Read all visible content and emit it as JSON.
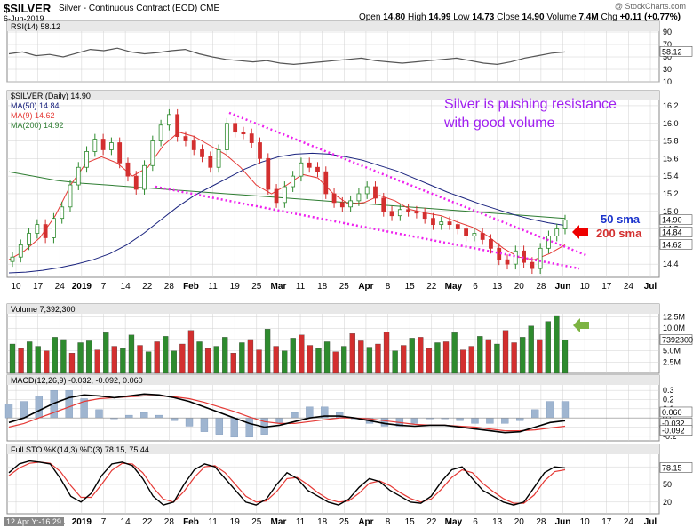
{
  "header": {
    "ticker": "$SILVER",
    "description": "Silver - Continuous Contract (EOD)",
    "exchange": "CME",
    "date": "6-Jun-2019",
    "open_label": "Open",
    "open": "14.80",
    "high_label": "High",
    "high": "14.99",
    "low_label": "Low",
    "low": "14.73",
    "close_label": "Close",
    "close": "14.90",
    "volume_label": "Volume",
    "volume": "7.4M",
    "chg_label": "Chg",
    "chg": "+0.11 (+0.77%)",
    "watermark": "@ StockCharts.com"
  },
  "footer_note": "12 Apr Y:-16.29",
  "colors": {
    "up": "#2e8b2e",
    "down": "#d32f2f",
    "ma50": "#1a237e",
    "ma9": "#e53935",
    "ma200": "#2e7d32",
    "annotation": "#a020f0",
    "trend": "#ee22ee",
    "grid": "#d0d0d0",
    "panel_header": "#e8e8e8"
  },
  "chart_data": [
    {
      "type": "line",
      "panel": "RSI",
      "legend": "RSI(14) 58.12",
      "ylim": [
        10,
        90
      ],
      "yticks": [
        "90",
        "70",
        "50",
        "30",
        "10"
      ],
      "y_labels_right": [
        "58.12"
      ],
      "series": [
        {
          "name": "RSI(14)",
          "values": [
            55,
            58,
            52,
            54,
            50,
            56,
            62,
            60,
            64,
            58,
            55,
            57,
            60,
            62,
            55,
            50,
            46,
            44,
            42,
            44,
            40,
            38,
            40,
            42,
            44,
            46,
            48,
            44,
            42,
            40,
            42,
            44,
            46,
            48,
            44,
            40,
            38,
            42,
            48,
            52,
            56,
            58
          ]
        }
      ]
    },
    {
      "type": "candlestick",
      "panel": "Price",
      "legend": [
        "$SILVER (Daily) 14.90",
        "MA(50) 14.84",
        "MA(9) 14.62",
        "MA(200) 14.92"
      ],
      "ylim": [
        14.25,
        16.25
      ],
      "yticks": [
        "16.2",
        "16.0",
        "15.8",
        "15.6",
        "15.4",
        "15.2",
        "15.0",
        "14.8",
        "14.6",
        "14.4"
      ],
      "y_labels_right": [
        "14.90",
        "14.84",
        "14.62"
      ],
      "x_tick_labels": [
        "10",
        "17",
        "24",
        "2019",
        "7",
        "14",
        "22",
        "28",
        "Feb",
        "11",
        "19",
        "25",
        "Mar",
        "11",
        "18",
        "25",
        "Apr",
        "8",
        "15",
        "22",
        "May",
        "6",
        "13",
        "20",
        "28",
        "Jun",
        "10",
        "17",
        "24",
        "Jul"
      ],
      "closes": [
        14.48,
        14.62,
        14.75,
        14.85,
        14.7,
        14.92,
        15.05,
        15.3,
        15.5,
        15.68,
        15.82,
        15.7,
        15.78,
        15.55,
        15.4,
        15.25,
        15.52,
        15.8,
        15.98,
        16.1,
        15.85,
        15.8,
        15.7,
        15.62,
        15.5,
        15.7,
        16.0,
        15.9,
        15.88,
        15.78,
        15.6,
        15.25,
        15.1,
        15.28,
        15.4,
        15.55,
        15.5,
        15.45,
        15.2,
        15.1,
        15.05,
        15.12,
        15.2,
        15.28,
        15.15,
        15.0,
        14.95,
        15.02,
        15.0,
        14.98,
        14.92,
        14.85,
        14.88,
        14.85,
        14.8,
        14.72,
        14.75,
        14.68,
        14.58,
        14.45,
        14.4,
        14.55,
        14.42,
        14.35,
        14.58,
        14.72,
        14.8,
        14.9
      ],
      "series_lines": [
        {
          "name": "MA(50)",
          "values": [
            14.3,
            14.31,
            14.33,
            14.36,
            14.4,
            14.45,
            14.52,
            14.62,
            14.75,
            14.9,
            15.05,
            15.18,
            15.28,
            15.38,
            15.48,
            15.56,
            15.62,
            15.65,
            15.66,
            15.65,
            15.62,
            15.58,
            15.52,
            15.46,
            15.38,
            15.3,
            15.22,
            15.15,
            15.08,
            15.02,
            14.96,
            14.91,
            14.87,
            14.84
          ]
        },
        {
          "name": "MA(9)",
          "values": [
            14.45,
            14.55,
            14.7,
            14.95,
            15.3,
            15.55,
            15.62,
            15.55,
            15.4,
            15.5,
            15.75,
            15.9,
            15.85,
            15.75,
            15.65,
            15.5,
            15.3,
            15.2,
            15.3,
            15.42,
            15.38,
            15.2,
            15.08,
            15.1,
            15.18,
            15.12,
            15.02,
            14.98,
            14.95,
            14.88,
            14.82,
            14.72,
            14.58,
            14.48,
            14.45,
            14.52,
            14.62
          ]
        },
        {
          "name": "MA(200)",
          "values": [
            15.45,
            15.4,
            15.35,
            15.32,
            15.3,
            15.28,
            15.26,
            15.24,
            15.22,
            15.2,
            15.18,
            15.16,
            15.14,
            15.12,
            15.1,
            15.08,
            15.06,
            15.04,
            15.02,
            15.0,
            14.98,
            14.96,
            14.94,
            14.92
          ]
        }
      ],
      "annotations": [
        "Silver is pushing resistance",
        "with good volume",
        "50 sma",
        "200 sma"
      ]
    },
    {
      "type": "bar",
      "panel": "Volume",
      "legend": "Volume 7,392,300",
      "yticks": [
        "12.5M",
        "10.0M",
        "7.5M",
        "5.0M",
        "2.5M"
      ],
      "y_labels_right": [
        "7392300"
      ],
      "ylim": [
        0,
        13000000
      ],
      "values": [
        6.5,
        5.5,
        7.0,
        6.0,
        5.0,
        8.0,
        7.5,
        4.5,
        6.8,
        7.2,
        5.2,
        9.0,
        6.0,
        5.5,
        8.5,
        6.2,
        4.8,
        7.0,
        8.2,
        5.0,
        6.5,
        9.5,
        7.0,
        5.5,
        6.0,
        8.0,
        4.5,
        6.8,
        7.5,
        5.2,
        9.8,
        6.0,
        5.0,
        7.8,
        8.5,
        6.2,
        5.5,
        7.0,
        4.8,
        6.0,
        8.8,
        7.2,
        5.8,
        6.5,
        9.2,
        5.0,
        6.2,
        7.8,
        8.0,
        5.5,
        6.8,
        7.0,
        9.0,
        5.2,
        6.0,
        8.2,
        7.5,
        6.5,
        9.5,
        6.8,
        8.0,
        10.5,
        7.5,
        11.5,
        12.8,
        7.4
      ],
      "up_flags": [
        1,
        0,
        1,
        1,
        0,
        1,
        1,
        0,
        1,
        1,
        0,
        1,
        0,
        1,
        1,
        0,
        1,
        0,
        1,
        1,
        0,
        0,
        1,
        0,
        1,
        1,
        0,
        1,
        0,
        0,
        1,
        0,
        1,
        1,
        0,
        0,
        1,
        1,
        0,
        1,
        0,
        0,
        1,
        0,
        0,
        1,
        0,
        1,
        0,
        0,
        1,
        0,
        1,
        0,
        0,
        1,
        0,
        1,
        0,
        0,
        1,
        1,
        0,
        1,
        1,
        1
      ]
    },
    {
      "type": "line",
      "panel": "MACD",
      "legend": "MACD(12,26,9) -0.032, -0.092, 0.060",
      "yticks": [
        "0.3",
        "0.2",
        "0.1",
        "0.0",
        "-0.1",
        "-0.2"
      ],
      "y_labels_right": [
        "0.060",
        "-0.032",
        "-0.092"
      ],
      "ylim": [
        -0.25,
        0.35
      ],
      "series": [
        {
          "name": "MACD",
          "values": [
            -0.05,
            0.0,
            0.08,
            0.16,
            0.22,
            0.25,
            0.24,
            0.22,
            0.24,
            0.26,
            0.25,
            0.22,
            0.18,
            0.12,
            0.06,
            0.0,
            -0.06,
            -0.1,
            -0.08,
            -0.04,
            0.0,
            0.02,
            0.02,
            0.0,
            -0.03,
            -0.06,
            -0.08,
            -0.09,
            -0.08,
            -0.08,
            -0.1,
            -0.12,
            -0.14,
            -0.16,
            -0.15,
            -0.1,
            -0.05,
            -0.03
          ]
        },
        {
          "name": "Signal",
          "values": [
            -0.1,
            -0.06,
            0.0,
            0.06,
            0.12,
            0.18,
            0.21,
            0.22,
            0.23,
            0.24,
            0.24,
            0.23,
            0.21,
            0.17,
            0.12,
            0.07,
            0.01,
            -0.04,
            -0.06,
            -0.06,
            -0.04,
            -0.02,
            0.0,
            0.0,
            -0.01,
            -0.03,
            -0.05,
            -0.07,
            -0.08,
            -0.08,
            -0.09,
            -0.1,
            -0.12,
            -0.14,
            -0.14,
            -0.13,
            -0.11,
            -0.09
          ]
        }
      ]
    },
    {
      "type": "line",
      "panel": "Full STO",
      "legend": "Full STO %K(14,3) %D(3) 78.15, 75.44",
      "yticks": [
        "80",
        "50",
        "20"
      ],
      "y_labels_right": [
        "78.15"
      ],
      "ylim": [
        0,
        100
      ],
      "series": [
        {
          "name": "%K",
          "values": [
            70,
            85,
            90,
            88,
            85,
            60,
            30,
            20,
            35,
            65,
            85,
            88,
            82,
            60,
            30,
            15,
            20,
            50,
            75,
            85,
            80,
            60,
            40,
            20,
            15,
            25,
            50,
            70,
            60,
            40,
            30,
            20,
            15,
            25,
            45,
            60,
            55,
            40,
            30,
            20,
            18,
            30,
            55,
            75,
            80,
            60,
            40,
            30,
            20,
            15,
            20,
            45,
            70,
            80,
            78
          ]
        },
        {
          "name": "%D",
          "values": [
            65,
            78,
            86,
            88,
            86,
            72,
            48,
            28,
            28,
            50,
            74,
            86,
            85,
            70,
            45,
            25,
            20,
            38,
            62,
            80,
            82,
            70,
            50,
            30,
            20,
            22,
            38,
            60,
            62,
            50,
            36,
            25,
            20,
            22,
            35,
            52,
            56,
            48,
            36,
            26,
            20,
            25,
            42,
            62,
            75,
            70,
            52,
            38,
            26,
            18,
            18,
            32,
            56,
            72,
            75
          ]
        }
      ]
    }
  ]
}
